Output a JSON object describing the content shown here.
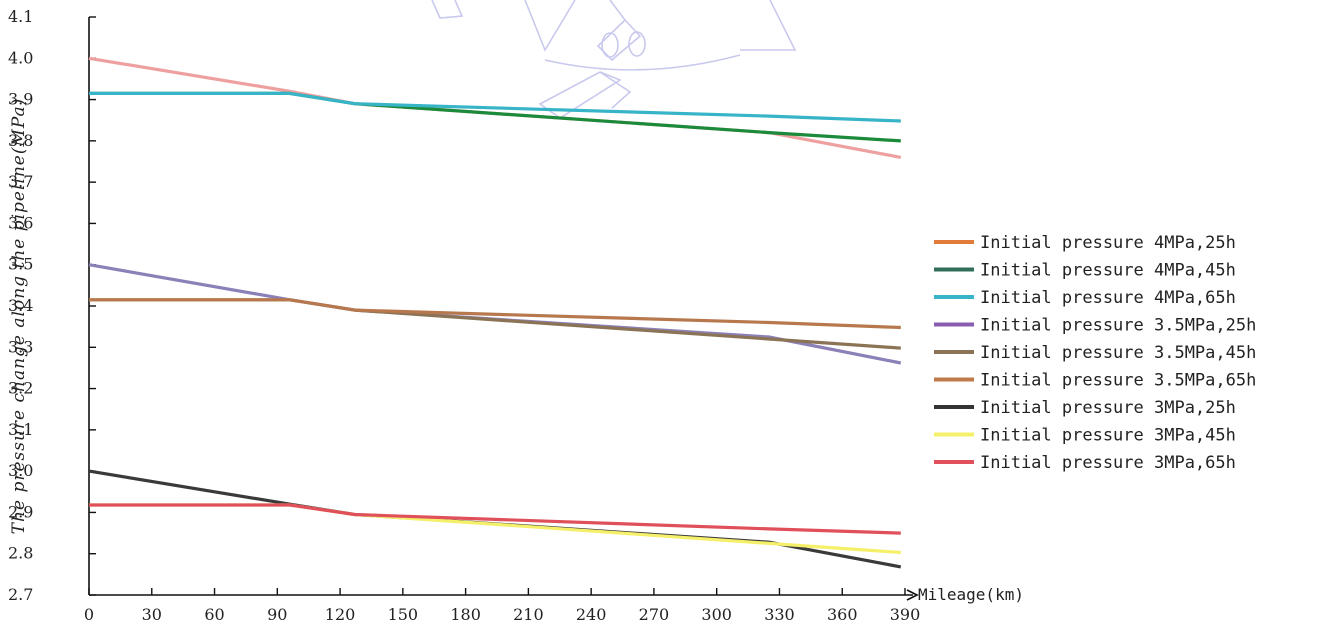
{
  "chart_data": {
    "type": "line",
    "title": "",
    "ylabel": "The pressure change along the pipeline(MPa)",
    "xlabel": "Mileage(km)",
    "xlim": [
      0,
      390
    ],
    "ylim": [
      2.7,
      4.1
    ],
    "x_ticks": [
      "0",
      "30",
      "60",
      "90",
      "120",
      "150",
      "180",
      "210",
      "240",
      "270",
      "300",
      "330",
      "360",
      "390"
    ],
    "y_ticks": [
      "2.7",
      "2.8",
      "2.9",
      "3.0",
      "3.1",
      "3.2",
      "3.3",
      "3.4",
      "3.5",
      "3.6",
      "3.7",
      "3.8",
      "3.9",
      "4.0",
      "4.1"
    ],
    "grid": false,
    "legend_position": "right",
    "series": [
      {
        "name": "Initial pressure 4MPa,25h",
        "legend_color": "#e07b39",
        "line_color": "#eea0a0",
        "x": [
          0,
          96,
          127,
          325,
          388
        ],
        "y": [
          4.0,
          3.92,
          3.89,
          3.82,
          3.76
        ]
      },
      {
        "name": "Initial pressure 4MPa,45h",
        "legend_color": "#2f6e5a",
        "line_color": "#1c8a3b",
        "x": [
          0,
          96,
          127,
          325,
          388
        ],
        "y": [
          3.915,
          3.915,
          3.89,
          3.82,
          3.8
        ]
      },
      {
        "name": "Initial pressure 4MPa,65h",
        "legend_color": "#37b4c8",
        "line_color": "#37b4c8",
        "x": [
          0,
          96,
          127,
          325,
          388
        ],
        "y": [
          3.915,
          3.915,
          3.89,
          3.86,
          3.848
        ]
      },
      {
        "name": "Initial pressure 3.5MPa,25h",
        "legend_color": "#8a5cb0",
        "line_color": "#8c80b8",
        "x": [
          0,
          96,
          127,
          325,
          388
        ],
        "y": [
          3.5,
          3.415,
          3.39,
          3.325,
          3.262
        ]
      },
      {
        "name": "Initial pressure 3.5MPa,45h",
        "legend_color": "#8b7355",
        "line_color": "#8b7355",
        "x": [
          0,
          96,
          127,
          325,
          388
        ],
        "y": [
          3.415,
          3.415,
          3.39,
          3.32,
          3.298
        ]
      },
      {
        "name": "Initial pressure 3.5MPa,65h",
        "legend_color": "#c07a4a",
        "line_color": "#b8784e",
        "x": [
          0,
          96,
          127,
          325,
          388
        ],
        "y": [
          3.415,
          3.415,
          3.39,
          3.36,
          3.348
        ]
      },
      {
        "name": "Initial pressure 3MPa,25h",
        "legend_color": "#333333",
        "line_color": "#3a3a3a",
        "x": [
          0,
          96,
          127,
          325,
          388
        ],
        "y": [
          3.0,
          2.92,
          2.895,
          2.828,
          2.768
        ]
      },
      {
        "name": "Initial pressure 3MPa,45h",
        "legend_color": "#f5f06a",
        "line_color": "#f5f06a",
        "x": [
          0,
          96,
          127,
          325,
          388
        ],
        "y": [
          2.918,
          2.918,
          2.895,
          2.825,
          2.803
        ]
      },
      {
        "name": "Initial pressure 3MPa,65h",
        "legend_color": "#e0505a",
        "line_color": "#e0505a",
        "x": [
          0,
          96,
          127,
          325,
          388
        ],
        "y": [
          2.918,
          2.918,
          2.895,
          2.86,
          2.85
        ]
      }
    ]
  }
}
